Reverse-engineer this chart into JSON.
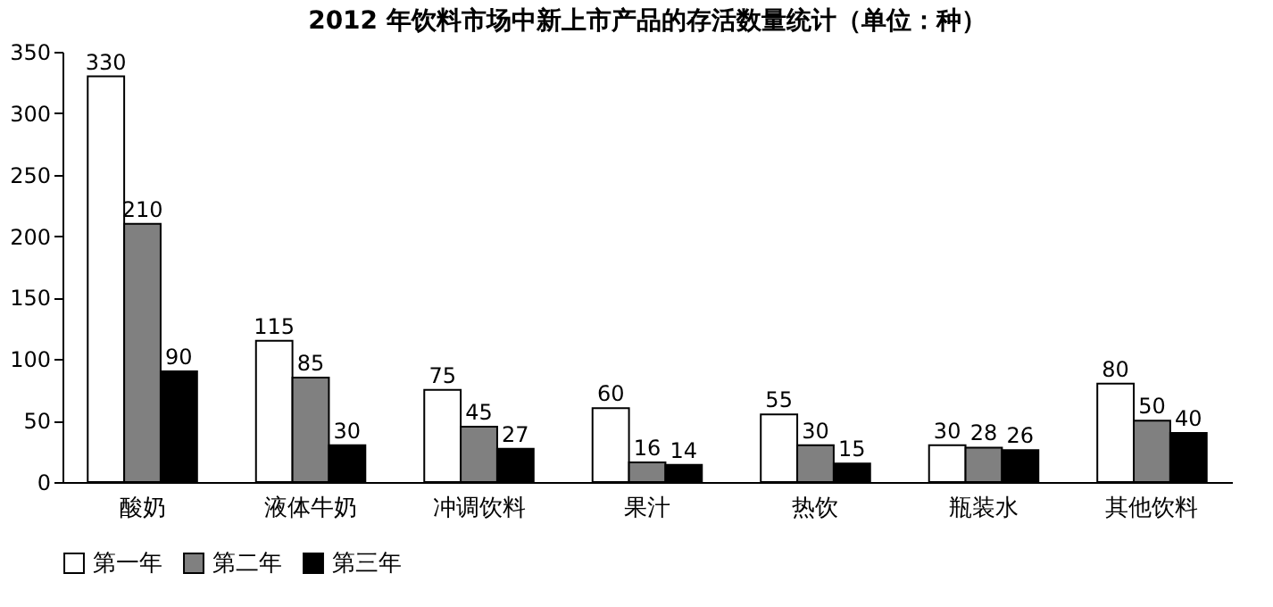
{
  "chart_data": {
    "type": "bar",
    "title": "2012 年饮料市场中新上市产品的存活数量统计（单位：种）",
    "categories": [
      "酸奶",
      "液体牛奶",
      "冲调饮料",
      "果汁",
      "热饮",
      "瓶装水",
      "其他饮料"
    ],
    "series": [
      {
        "name": "第一年",
        "color": "#ffffff",
        "values": [
          330,
          115,
          75,
          60,
          55,
          30,
          80
        ]
      },
      {
        "name": "第二年",
        "color": "#808080",
        "values": [
          210,
          85,
          45,
          16,
          30,
          28,
          50
        ]
      },
      {
        "name": "第三年",
        "color": "#000000",
        "values": [
          90,
          30,
          27,
          14,
          15,
          26,
          40
        ]
      }
    ],
    "ylim": [
      0,
      350
    ],
    "yticks": [
      0,
      50,
      100,
      150,
      200,
      250,
      300,
      350
    ],
    "data_labels": true,
    "legend": "bottom",
    "grid": false
  }
}
